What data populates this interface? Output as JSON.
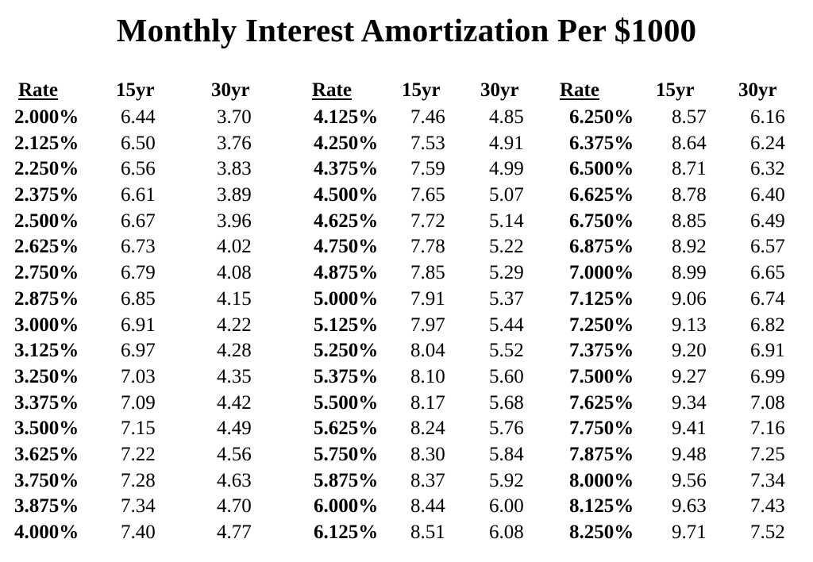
{
  "title": "Monthly Interest  Amortization Per $1000",
  "headers": {
    "rate": "Rate",
    "y15": "15yr",
    "y30": "30yr"
  },
  "blocks": [
    {
      "rows": [
        {
          "rate": "2.000%",
          "y15": "6.44",
          "y30": "3.70"
        },
        {
          "rate": "2.125%",
          "y15": "6.50",
          "y30": "3.76"
        },
        {
          "rate": "2.250%",
          "y15": "6.56",
          "y30": "3.83"
        },
        {
          "rate": "2.375%",
          "y15": "6.61",
          "y30": "3.89"
        },
        {
          "rate": "2.500%",
          "y15": "6.67",
          "y30": "3.96"
        },
        {
          "rate": "2.625%",
          "y15": "6.73",
          "y30": "4.02"
        },
        {
          "rate": "2.750%",
          "y15": "6.79",
          "y30": "4.08"
        },
        {
          "rate": "2.875%",
          "y15": "6.85",
          "y30": "4.15"
        },
        {
          "rate": "3.000%",
          "y15": "6.91",
          "y30": "4.22"
        },
        {
          "rate": "3.125%",
          "y15": "6.97",
          "y30": "4.28"
        },
        {
          "rate": "3.250%",
          "y15": "7.03",
          "y30": "4.35"
        },
        {
          "rate": "3.375%",
          "y15": "7.09",
          "y30": "4.42"
        },
        {
          "rate": "3.500%",
          "y15": "7.15",
          "y30": "4.49"
        },
        {
          "rate": "3.625%",
          "y15": "7.22",
          "y30": "4.56"
        },
        {
          "rate": "3.750%",
          "y15": "7.28",
          "y30": "4.63"
        },
        {
          "rate": "3.875%",
          "y15": "7.34",
          "y30": "4.70"
        },
        {
          "rate": "4.000%",
          "y15": "7.40",
          "y30": "4.77"
        }
      ]
    },
    {
      "rows": [
        {
          "rate": "4.125%",
          "y15": "7.46",
          "y30": "4.85"
        },
        {
          "rate": "4.250%",
          "y15": "7.53",
          "y30": "4.91"
        },
        {
          "rate": "4.375%",
          "y15": "7.59",
          "y30": "4.99"
        },
        {
          "rate": "4.500%",
          "y15": "7.65",
          "y30": "5.07"
        },
        {
          "rate": "4.625%",
          "y15": "7.72",
          "y30": "5.14"
        },
        {
          "rate": "4.750%",
          "y15": "7.78",
          "y30": "5.22"
        },
        {
          "rate": "4.875%",
          "y15": "7.85",
          "y30": "5.29"
        },
        {
          "rate": "5.000%",
          "y15": "7.91",
          "y30": "5.37"
        },
        {
          "rate": "5.125%",
          "y15": "7.97",
          "y30": "5.44"
        },
        {
          "rate": "5.250%",
          "y15": "8.04",
          "y30": "5.52"
        },
        {
          "rate": "5.375%",
          "y15": "8.10",
          "y30": "5.60"
        },
        {
          "rate": "5.500%",
          "y15": "8.17",
          "y30": "5.68"
        },
        {
          "rate": "5.625%",
          "y15": "8.24",
          "y30": "5.76"
        },
        {
          "rate": "5.750%",
          "y15": "8.30",
          "y30": "5.84"
        },
        {
          "rate": "5.875%",
          "y15": "8.37",
          "y30": "5.92"
        },
        {
          "rate": "6.000%",
          "y15": "8.44",
          "y30": "6.00"
        },
        {
          "rate": "6.125%",
          "y15": "8.51",
          "y30": "6.08"
        }
      ]
    },
    {
      "rows": [
        {
          "rate": "6.250%",
          "y15": "8.57",
          "y30": "6.16"
        },
        {
          "rate": "6.375%",
          "y15": "8.64",
          "y30": "6.24"
        },
        {
          "rate": "6.500%",
          "y15": "8.71",
          "y30": "6.32"
        },
        {
          "rate": "6.625%",
          "y15": "8.78",
          "y30": "6.40"
        },
        {
          "rate": "6.750%",
          "y15": "8.85",
          "y30": "6.49"
        },
        {
          "rate": "6.875%",
          "y15": "8.92",
          "y30": "6.57"
        },
        {
          "rate": "7.000%",
          "y15": "8.99",
          "y30": "6.65"
        },
        {
          "rate": "7.125%",
          "y15": "9.06",
          "y30": "6.74"
        },
        {
          "rate": "7.250%",
          "y15": "9.13",
          "y30": "6.82"
        },
        {
          "rate": "7.375%",
          "y15": "9.20",
          "y30": "6.91"
        },
        {
          "rate": "7.500%",
          "y15": "9.27",
          "y30": "6.99"
        },
        {
          "rate": "7.625%",
          "y15": "9.34",
          "y30": "7.08"
        },
        {
          "rate": "7.750%",
          "y15": "9.41",
          "y30": "7.16"
        },
        {
          "rate": "7.875%",
          "y15": "9.48",
          "y30": "7.25"
        },
        {
          "rate": "8.000%",
          "y15": "9.56",
          "y30": "7.34"
        },
        {
          "rate": "8.125%",
          "y15": "9.63",
          "y30": "7.43"
        },
        {
          "rate": "8.250%",
          "y15": "9.71",
          "y30": "7.52"
        }
      ]
    }
  ]
}
